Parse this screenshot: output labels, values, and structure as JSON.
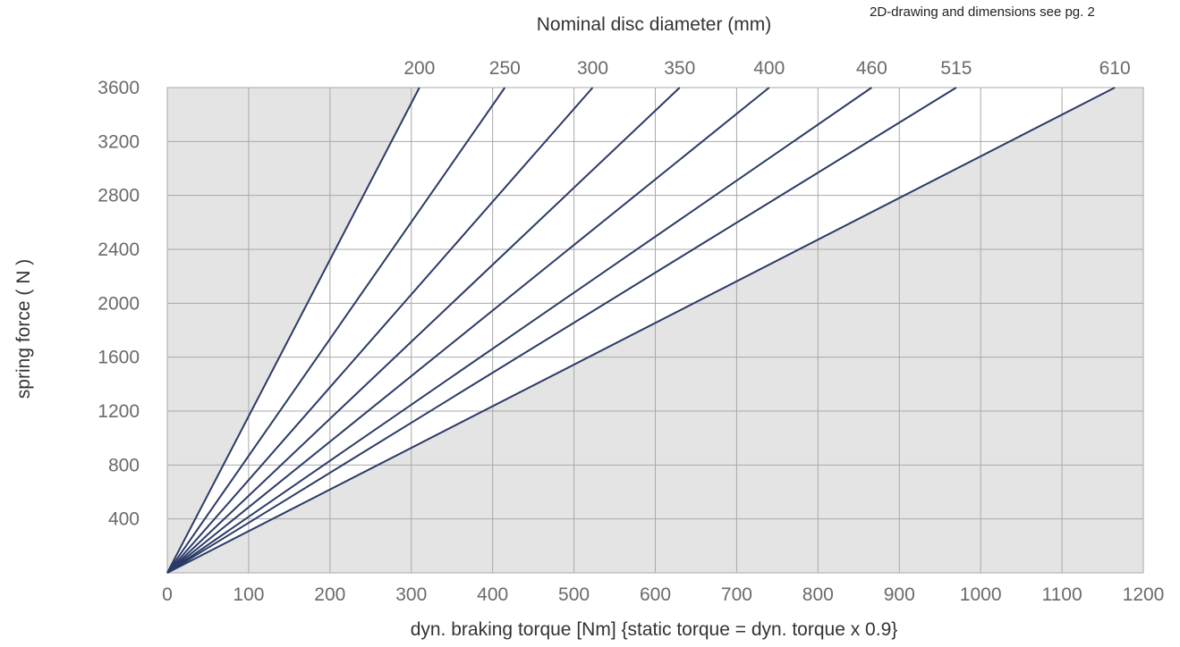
{
  "chart_data": {
    "type": "line",
    "title": "Nominal disc diameter (mm)",
    "note": "2D-drawing and dimensions see pg. 2",
    "xlabel": "dyn. braking torque [Nm] {static torque = dyn. torque x 0.9}",
    "ylabel": "spring force ( N )",
    "xlim": [
      0,
      1200
    ],
    "ylim": [
      0,
      3600
    ],
    "x_ticks": [
      "0",
      "100",
      "200",
      "300",
      "400",
      "500",
      "600",
      "700",
      "800",
      "900",
      "1000",
      "1100",
      "1200"
    ],
    "y_ticks": [
      "400",
      "800",
      "1200",
      "1600",
      "2000",
      "2400",
      "2800",
      "3200",
      "3600"
    ],
    "grid": true,
    "series": [
      {
        "name": "200",
        "x": [
          0,
          310
        ],
        "y": [
          0,
          3600
        ]
      },
      {
        "name": "250",
        "x": [
          0,
          415
        ],
        "y": [
          0,
          3600
        ]
      },
      {
        "name": "300",
        "x": [
          0,
          523
        ],
        "y": [
          0,
          3600
        ]
      },
      {
        "name": "350",
        "x": [
          0,
          630
        ],
        "y": [
          0,
          3600
        ]
      },
      {
        "name": "400",
        "x": [
          0,
          740
        ],
        "y": [
          0,
          3600
        ]
      },
      {
        "name": "460",
        "x": [
          0,
          866
        ],
        "y": [
          0,
          3600
        ]
      },
      {
        "name": "515",
        "x": [
          0,
          970
        ],
        "y": [
          0,
          3600
        ]
      },
      {
        "name": "610",
        "x": [
          0,
          1165
        ],
        "y": [
          0,
          3600
        ]
      }
    ],
    "colors": {
      "line": "#2b3a67",
      "shaded": "#e4e4e4",
      "open": "#ffffff",
      "grid": "#a9a9a9"
    }
  }
}
